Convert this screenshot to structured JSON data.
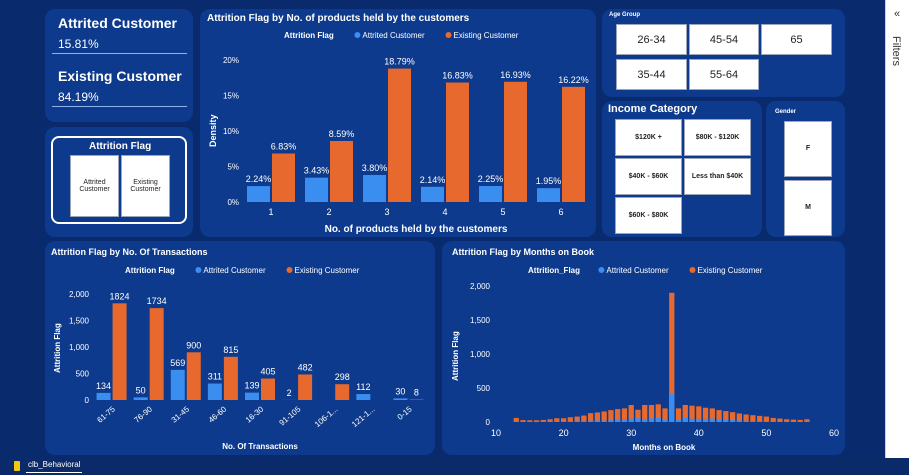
{
  "kpis": {
    "attrited": {
      "label": "Attrited Customer",
      "value": "15.81%"
    },
    "existing": {
      "label": "Existing Customer",
      "value": "84.19%"
    }
  },
  "attrition_flag_slicer": {
    "title": "Attrition Flag",
    "options": [
      "Attrited Customer",
      "Existing Customer"
    ]
  },
  "age_group_slicer": {
    "title": "Age Group",
    "options": [
      "26-34",
      "45-54",
      "65",
      "35-44",
      "55-64"
    ]
  },
  "income_slicer": {
    "title": "Income Category",
    "options": [
      "$120K +",
      "$80K - $120K",
      "$40K - $60K",
      "Less than $40K",
      "$60K - $80K"
    ]
  },
  "gender_slicer": {
    "title": "Gender",
    "options": [
      "F",
      "M"
    ]
  },
  "legend_field": "Attrition Flag",
  "legend_field_alt": "Attrition_Flag",
  "colors": {
    "attrited": "#3a8ef0",
    "existing": "#e8692d"
  },
  "filters_pane": {
    "label": "Filters",
    "collapse": "«"
  },
  "status": {
    "tab": "clb_Behavioral"
  },
  "chart_data": [
    {
      "type": "bar",
      "title": "Attrition Flag by No. of products held by the customers",
      "xlabel": "No. of products held by the customers",
      "ylabel": "Density",
      "categories": [
        "1",
        "2",
        "3",
        "4",
        "5",
        "6"
      ],
      "yticks": [
        "0%",
        "5%",
        "10%",
        "15%",
        "20%"
      ],
      "ylim": [
        0,
        20
      ],
      "series": [
        {
          "name": "Attrited Customer",
          "values": [
            2.24,
            3.43,
            3.8,
            2.14,
            2.25,
            1.95
          ],
          "labels": [
            "2.24%",
            "3.43%",
            "3.80%",
            "2.14%",
            "2.25%",
            "1.95%"
          ]
        },
        {
          "name": "Existing Customer",
          "values": [
            6.83,
            8.59,
            18.79,
            16.83,
            16.93,
            16.22
          ],
          "labels": [
            "6.83%",
            "8.59%",
            "18.79%",
            "16.83%",
            "16.93%",
            "16.22%"
          ]
        }
      ]
    },
    {
      "type": "bar",
      "title": "Attrition Flag by No. Of Transactions",
      "xlabel": "No. Of Transactions",
      "ylabel": "Attrition Flag",
      "categories": [
        "61-75",
        "76-90",
        "31-45",
        "46-60",
        "16-30",
        "91-105",
        "106-1...",
        "121-1...",
        "0-15"
      ],
      "yticks": [
        "0",
        "500",
        "1,000",
        "1,500",
        "2,000"
      ],
      "ylim": [
        0,
        2000
      ],
      "series": [
        {
          "name": "Attrited Customer",
          "values": [
            134,
            50,
            569,
            311,
            139,
            2,
            0,
            112,
            30
          ],
          "labels": [
            "134",
            "50",
            "569",
            "311",
            "139",
            "2",
            "",
            "112",
            "30"
          ]
        },
        {
          "name": "Existing Customer",
          "values": [
            1824,
            1734,
            900,
            815,
            405,
            482,
            298,
            0,
            8
          ],
          "labels": [
            "1824",
            "1734",
            "900",
            "815",
            "405",
            "482",
            "298",
            "",
            "8"
          ]
        }
      ]
    },
    {
      "type": "bar",
      "title": "Attrition Flag by Months on Book",
      "xlabel": "Months on Book",
      "ylabel": "Attrition Flag",
      "xlim": [
        10,
        60
      ],
      "xticks": [
        "10",
        "20",
        "30",
        "40",
        "50",
        "60"
      ],
      "yticks": [
        "0",
        "500",
        "1,000",
        "1,500",
        "2,000"
      ],
      "ylim": [
        0,
        2000
      ],
      "x": [
        13,
        14,
        15,
        16,
        17,
        18,
        19,
        20,
        21,
        22,
        23,
        24,
        25,
        26,
        27,
        28,
        29,
        30,
        31,
        32,
        33,
        34,
        35,
        36,
        37,
        38,
        39,
        40,
        41,
        42,
        43,
        44,
        45,
        46,
        47,
        48,
        49,
        50,
        51,
        52,
        53,
        54,
        55,
        56
      ],
      "series": [
        {
          "name": "Attrited Customer",
          "values": [
            9,
            6,
            8,
            6,
            8,
            8,
            8,
            11,
            12,
            20,
            17,
            20,
            23,
            20,
            25,
            37,
            40,
            50,
            55,
            45,
            55,
            58,
            35,
            420,
            35,
            60,
            50,
            45,
            45,
            50,
            38,
            30,
            28,
            22,
            18,
            15,
            12,
            10,
            9,
            6,
            6,
            5,
            4,
            8
          ]
        },
        {
          "name": "Existing Customer",
          "values": [
            60,
            28,
            25,
            25,
            30,
            40,
            55,
            55,
            70,
            80,
            95,
            130,
            140,
            155,
            175,
            190,
            200,
            250,
            180,
            250,
            250,
            260,
            200,
            1900,
            200,
            250,
            240,
            230,
            210,
            200,
            175,
            160,
            145,
            125,
            110,
            100,
            90,
            80,
            60,
            50,
            40,
            35,
            30,
            40
          ]
        }
      ]
    }
  ]
}
